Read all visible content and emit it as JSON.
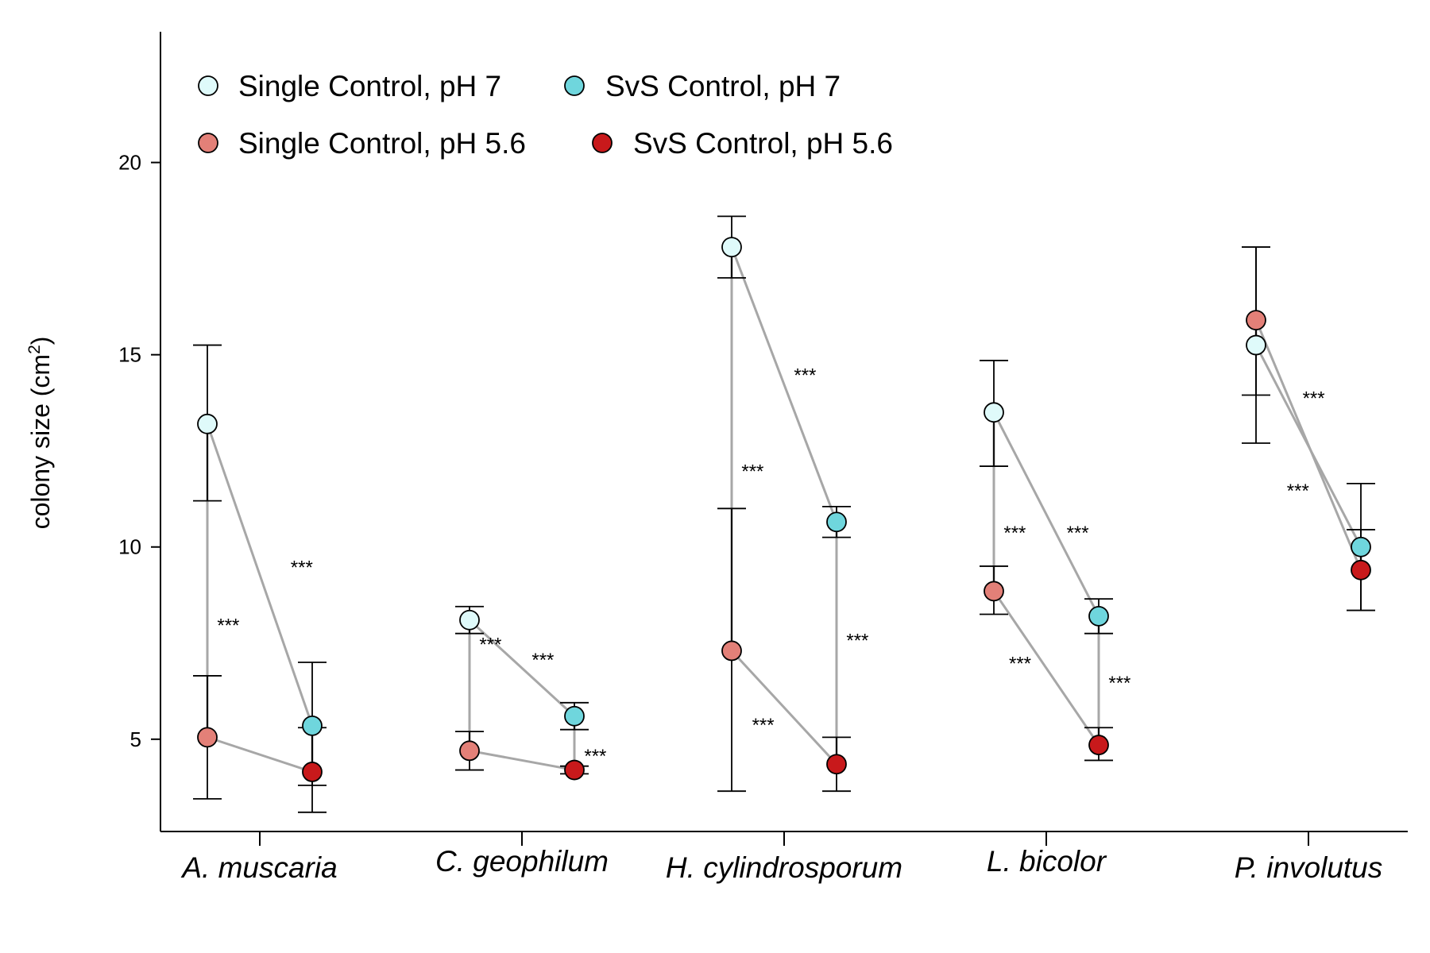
{
  "chart_data": {
    "type": "scatter",
    "ylabel": "colony size (cm²)",
    "ylabel_main": "colony size (cm",
    "ylabel_sup": "2",
    "ylabel_tail": ")",
    "ylim": [
      2.6,
      23.4
    ],
    "yticks": [
      5,
      10,
      15,
      20
    ],
    "yticks_labels": [
      "5",
      "10",
      "15",
      "20"
    ],
    "grid": false,
    "legend_position": "top-left",
    "categories": [
      "A. muscaria",
      "C. geophilum",
      "H. cylindrosporum",
      "L. bicolor",
      "P. involutus"
    ],
    "series": [
      {
        "name": "Single Control, pH 7",
        "color": "#dffafa",
        "offset": "left",
        "values": [
          13.2,
          8.1,
          17.8,
          13.5,
          15.25
        ],
        "err_low": [
          11.2,
          7.75,
          17.0,
          12.1,
          13.95
        ],
        "err_high": [
          15.25,
          8.45,
          18.6,
          14.85,
          17.8
        ]
      },
      {
        "name": "SvS Control, pH 7",
        "color": "#6fd6dd",
        "offset": "right",
        "values": [
          5.35,
          5.6,
          10.65,
          8.2,
          10.0
        ],
        "err_low": [
          3.8,
          5.25,
          10.25,
          7.75,
          8.35
        ],
        "err_high": [
          7.0,
          5.95,
          11.05,
          8.65,
          11.65
        ]
      },
      {
        "name": "Single Control, pH 5.6",
        "color": "#e38078",
        "offset": "left",
        "values": [
          5.05,
          4.7,
          7.3,
          8.85,
          15.9
        ],
        "err_low": [
          3.45,
          4.2,
          3.65,
          8.25,
          12.7
        ],
        "err_high": [
          6.65,
          5.2,
          11.0,
          9.5,
          17.8
        ]
      },
      {
        "name": "SvS Control, pH 5.6",
        "color": "#c8191b",
        "offset": "right",
        "values": [
          4.15,
          4.2,
          4.35,
          4.85,
          9.4
        ],
        "err_low": [
          3.1,
          4.1,
          3.65,
          4.45,
          8.35
        ],
        "err_high": [
          5.3,
          4.3,
          5.05,
          5.3,
          10.45
        ]
      }
    ],
    "connectors": [
      {
        "from": 0,
        "to": 1
      },
      {
        "from": 2,
        "to": 3
      },
      {
        "from": 0,
        "to": 2
      },
      {
        "from": 1,
        "to": 3
      }
    ],
    "annotations": [
      {
        "text": "***",
        "category": 0,
        "dx": 0.16,
        "y": 9.3
      },
      {
        "text": "***",
        "category": 0,
        "dx": -0.12,
        "y": 7.8
      },
      {
        "text": "***",
        "category": 1,
        "dx": 0.08,
        "y": 6.9
      },
      {
        "text": "***",
        "category": 1,
        "dx": -0.12,
        "y": 7.3
      },
      {
        "text": "***",
        "category": 1,
        "dx": 0.28,
        "y": 4.4
      },
      {
        "text": "***",
        "category": 2,
        "dx": 0.08,
        "y": 14.3
      },
      {
        "text": "***",
        "category": 2,
        "dx": -0.12,
        "y": 11.8
      },
      {
        "text": "***",
        "category": 2,
        "dx": 0.28,
        "y": 7.4
      },
      {
        "text": "***",
        "category": 2,
        "dx": -0.08,
        "y": 5.2
      },
      {
        "text": "***",
        "category": 3,
        "dx": -0.12,
        "y": 10.2
      },
      {
        "text": "***",
        "category": 3,
        "dx": 0.12,
        "y": 10.2
      },
      {
        "text": "***",
        "category": 3,
        "dx": -0.1,
        "y": 6.8
      },
      {
        "text": "***",
        "category": 3,
        "dx": 0.28,
        "y": 6.3
      },
      {
        "text": "***",
        "category": 4,
        "dx": 0.02,
        "y": 13.7
      },
      {
        "text": "***",
        "category": 4,
        "dx": -0.04,
        "y": 11.3
      }
    ]
  }
}
